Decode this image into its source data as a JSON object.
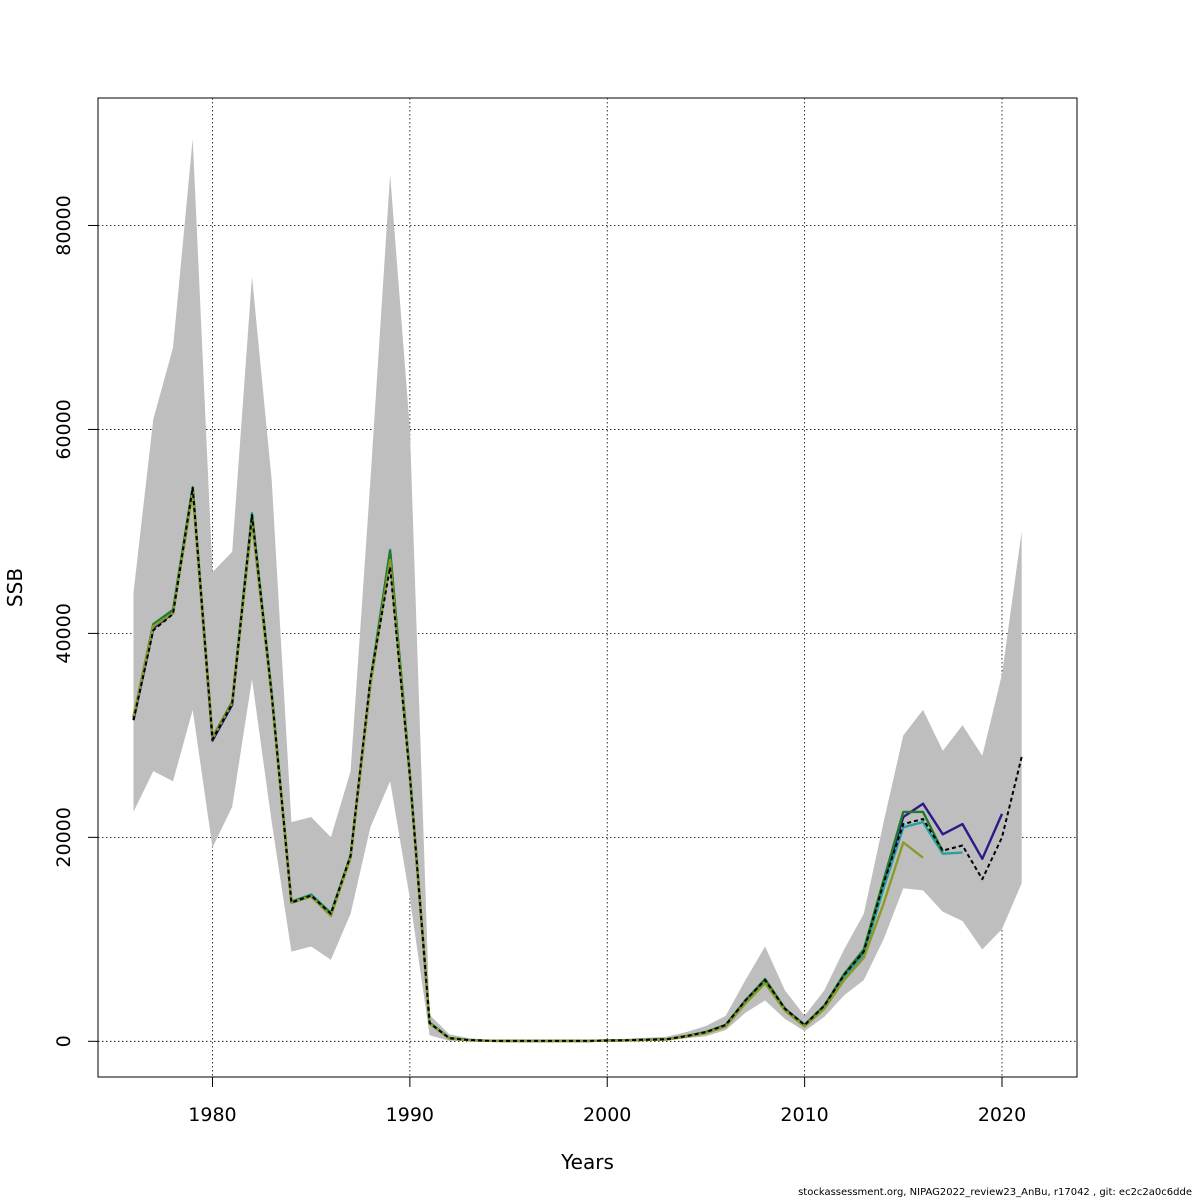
{
  "chart_data": {
    "type": "line",
    "xlabel": "Years",
    "ylabel": "SSB",
    "xlim": [
      1974.2,
      2023.8
    ],
    "ylim": [
      -3500,
      92500
    ],
    "x_ticks": [
      1980,
      1990,
      2000,
      2010,
      2020
    ],
    "y_ticks": [
      0,
      20000,
      40000,
      60000,
      80000
    ],
    "x_tick_labels": [
      "1980",
      "1990",
      "2000",
      "2010",
      "2020"
    ],
    "y_tick_labels": [
      "0",
      "20000",
      "40000",
      "60000",
      "80000"
    ],
    "grid": true,
    "band_color": "#bebebe",
    "confidence_band": {
      "x": [
        1976,
        1977,
        1978,
        1979,
        1980,
        1981,
        1982,
        1983,
        1984,
        1985,
        1986,
        1987,
        1988,
        1989,
        1990,
        1991,
        1992,
        1993,
        1994,
        1995,
        1996,
        1997,
        1998,
        1999,
        2000,
        2001,
        2002,
        2003,
        2004,
        2005,
        2006,
        2007,
        2008,
        2009,
        2010,
        2011,
        2012,
        2013,
        2014,
        2015,
        2016,
        2017,
        2018,
        2019,
        2020,
        2021
      ],
      "upper": [
        44000,
        61000,
        68000,
        88500,
        46000,
        48000,
        75000,
        55000,
        21500,
        22000,
        20000,
        26500,
        55000,
        85000,
        60000,
        2600,
        700,
        300,
        150,
        100,
        100,
        100,
        100,
        100,
        200,
        250,
        350,
        450,
        900,
        1500,
        2500,
        6000,
        9300,
        5000,
        2500,
        5000,
        9000,
        12500,
        21500,
        30000,
        32500,
        28500,
        31000,
        28000,
        36000,
        50000
      ],
      "lower": [
        22500,
        26500,
        25500,
        32500,
        19000,
        23000,
        35500,
        21500,
        8800,
        9300,
        8000,
        12500,
        21000,
        25500,
        14000,
        600,
        50,
        20,
        10,
        5,
        5,
        5,
        5,
        5,
        20,
        30,
        50,
        80,
        300,
        500,
        1100,
        2800,
        4000,
        2200,
        1000,
        2400,
        4500,
        6000,
        10000,
        15000,
        14800,
        12700,
        11800,
        9000,
        11000,
        15500
      ]
    },
    "series": [
      {
        "color": "#2e1a86",
        "dashed": false,
        "x": [
          1976,
          1977,
          1978,
          1979,
          1980,
          1981,
          1982,
          1983,
          1984,
          1985,
          1986,
          1987,
          1988,
          1989,
          1990,
          1991,
          1992,
          1993,
          1994,
          1995,
          1996,
          1997,
          1998,
          1999,
          2000,
          2001,
          2002,
          2003,
          2004,
          2005,
          2006,
          2007,
          2008,
          2009,
          2010,
          2011,
          2012,
          2013,
          2014,
          2015,
          2016,
          2017,
          2018,
          2019,
          2020
        ],
        "values": [
          31500,
          40500,
          42000,
          54000,
          29500,
          33000,
          51500,
          34000,
          13600,
          14200,
          12400,
          18100,
          35000,
          47800,
          26000,
          1800,
          300,
          120,
          50,
          40,
          40,
          40,
          40,
          40,
          80,
          100,
          160,
          200,
          500,
          900,
          1600,
          4000,
          6000,
          3200,
          1600,
          3500,
          6500,
          8800,
          15500,
          22000,
          23300,
          20300,
          21300,
          17900,
          22300
        ]
      },
      {
        "color": "#27a0a0",
        "dashed": false,
        "x": [
          1976,
          1977,
          1978,
          1979,
          1980,
          1981,
          1982,
          1983,
          1984,
          1985,
          1986,
          1987,
          1988,
          1989,
          1990,
          1991,
          1992,
          1993,
          1994,
          1995,
          1996,
          1997,
          1998,
          1999,
          2000,
          2001,
          2002,
          2003,
          2004,
          2005,
          2006,
          2007,
          2008,
          2009,
          2010,
          2011,
          2012,
          2013,
          2014,
          2015,
          2016,
          2017,
          2018
        ],
        "values": [
          31700,
          40700,
          42200,
          54300,
          29700,
          33200,
          51800,
          34200,
          13700,
          14400,
          12600,
          18200,
          35300,
          48200,
          26200,
          1850,
          310,
          125,
          50,
          40,
          40,
          40,
          40,
          40,
          80,
          100,
          160,
          200,
          480,
          880,
          1550,
          3900,
          5900,
          3100,
          1550,
          3400,
          6300,
          8500,
          15000,
          21000,
          21500,
          18400,
          18500
        ]
      },
      {
        "color": "#1f7a2c",
        "dashed": false,
        "x": [
          1976,
          1977,
          1978,
          1979,
          1980,
          1981,
          1982,
          1983,
          1984,
          1985,
          1986,
          1987,
          1988,
          1989,
          1990,
          1991,
          1992,
          1993,
          1994,
          1995,
          1996,
          1997,
          1998,
          1999,
          2000,
          2001,
          2002,
          2003,
          2004,
          2005,
          2006,
          2007,
          2008,
          2009,
          2010,
          2011,
          2012,
          2013,
          2014,
          2015,
          2016,
          2017
        ],
        "values": [
          31800,
          40900,
          42300,
          54300,
          29800,
          33300,
          51600,
          34000,
          13700,
          14300,
          12500,
          18200,
          35200,
          48100,
          26100,
          1800,
          300,
          120,
          50,
          40,
          40,
          40,
          40,
          40,
          80,
          100,
          160,
          200,
          500,
          900,
          1600,
          4000,
          6100,
          3200,
          1600,
          3500,
          6600,
          9000,
          15800,
          22500,
          22500,
          18600
        ]
      },
      {
        "color": "#8c9a2a",
        "dashed": false,
        "x": [
          1976,
          1977,
          1978,
          1979,
          1980,
          1981,
          1982,
          1983,
          1984,
          1985,
          1986,
          1987,
          1988,
          1989,
          1990,
          1991,
          1992,
          1993,
          1994,
          1995,
          1996,
          1997,
          1998,
          1999,
          2000,
          2001,
          2002,
          2003,
          2004,
          2005,
          2006,
          2007,
          2008,
          2009,
          2010,
          2011,
          2012,
          2013,
          2014,
          2015,
          2016
        ],
        "values": [
          31900,
          40700,
          42000,
          53800,
          29700,
          33200,
          51000,
          33800,
          13600,
          14200,
          12300,
          18000,
          35000,
          47200,
          25900,
          1750,
          280,
          110,
          45,
          35,
          35,
          35,
          35,
          35,
          70,
          90,
          140,
          180,
          450,
          800,
          1450,
          3700,
          5700,
          3000,
          1450,
          3200,
          6000,
          8200,
          13500,
          19500,
          18000
        ]
      },
      {
        "color": "#000000",
        "dashed": true,
        "x": [
          1976,
          1977,
          1978,
          1979,
          1980,
          1981,
          1982,
          1983,
          1984,
          1985,
          1986,
          1987,
          1988,
          1989,
          1990,
          1991,
          1992,
          1993,
          1994,
          1995,
          1996,
          1997,
          1998,
          1999,
          2000,
          2001,
          2002,
          2003,
          2004,
          2005,
          2006,
          2007,
          2008,
          2009,
          2010,
          2011,
          2012,
          2013,
          2014,
          2015,
          2016,
          2017,
          2018,
          2019,
          2020,
          2021
        ],
        "values": [
          31500,
          40300,
          41900,
          54300,
          29600,
          33100,
          51600,
          34000,
          13600,
          14300,
          12500,
          18200,
          35500,
          46500,
          26000,
          1800,
          300,
          120,
          50,
          40,
          40,
          40,
          40,
          40,
          80,
          100,
          160,
          200,
          500,
          900,
          1600,
          4000,
          6000,
          3200,
          1600,
          3500,
          6500,
          8800,
          15500,
          21300,
          21800,
          18700,
          19200,
          15900,
          20000,
          27900
        ]
      }
    ]
  },
  "footer": {
    "text": "stockassessment.org, NIPAG2022_review23_AnBu, r17042 , git: ec2c2a0c6dde"
  }
}
